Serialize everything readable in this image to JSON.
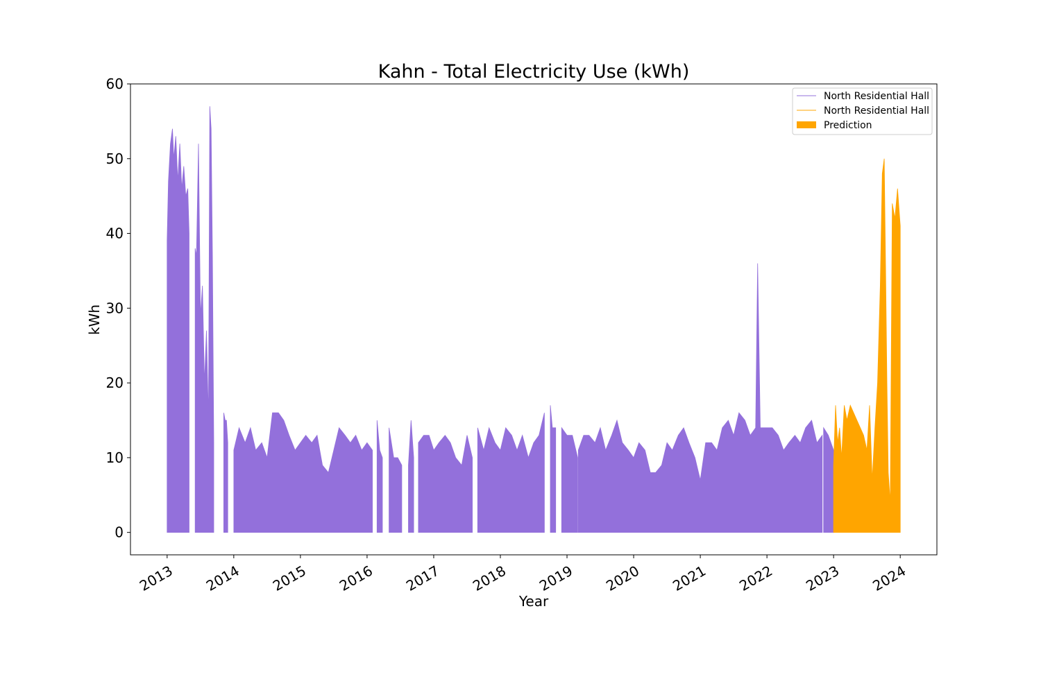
{
  "colors": {
    "historical": "#9370db",
    "prediction": "#ffa500",
    "axis": "#000000",
    "background": "#ffffff",
    "legend_border": "#cccccc"
  },
  "chart_data": {
    "type": "area",
    "title": "Kahn - Total Electricity Use (kWh)",
    "xlabel": "Year",
    "ylabel": "kWh",
    "x_ticks": [
      "2013",
      "2014",
      "2015",
      "2016",
      "2017",
      "2018",
      "2019",
      "2020",
      "2021",
      "2022",
      "2023",
      "2024"
    ],
    "x_range": [
      2012.45,
      2024.55
    ],
    "ylim": [
      -3,
      60
    ],
    "y_ticks": [
      0,
      10,
      20,
      30,
      40,
      50,
      60
    ],
    "grid": false,
    "legend_position": "top-right",
    "legend": [
      {
        "label": "North Residential Hall",
        "style": "line",
        "color": "#9370db"
      },
      {
        "label": "North Residential Hall",
        "style": "line",
        "color": "#ffa500"
      },
      {
        "label": "Prediction",
        "style": "patch",
        "color": "#ffa500"
      }
    ],
    "series": [
      {
        "name": "North Residential Hall",
        "color": "#9370db",
        "segments": [
          {
            "x": [
              2013.0,
              2013.02,
              2013.05,
              2013.08,
              2013.1,
              2013.13,
              2013.16,
              2013.19,
              2013.22,
              2013.25,
              2013.28,
              2013.31,
              2013.33
            ],
            "y": [
              39,
              47,
              52,
              54,
              50,
              53,
              47,
              52,
              46,
              49,
              45,
              46,
              40
            ]
          },
          {
            "x": [
              2013.42,
              2013.44,
              2013.47,
              2013.5,
              2013.53,
              2013.56,
              2013.59,
              2013.62,
              2013.64,
              2013.66,
              2013.68,
              2013.7
            ],
            "y": [
              38,
              37,
              52,
              29,
              33,
              20,
              27,
              15,
              57,
              54,
              37,
              12
            ]
          },
          {
            "x": [
              2013.85,
              2013.87,
              2013.89,
              2013.91
            ],
            "y": [
              16,
              15,
              15,
              12
            ]
          },
          {
            "x": [
              2014.0,
              2014.08,
              2014.17,
              2014.25,
              2014.33,
              2014.42,
              2014.5,
              2014.58,
              2014.67,
              2014.75,
              2014.83,
              2014.92,
              2015.0,
              2015.08,
              2015.17,
              2015.25,
              2015.33,
              2015.42,
              2015.5,
              2015.58,
              2015.67,
              2015.75,
              2015.83,
              2015.92,
              2016.0,
              2016.08
            ],
            "y": [
              11,
              14,
              12,
              14,
              11,
              12,
              10,
              16,
              16,
              15,
              13,
              11,
              12,
              13,
              12,
              13,
              9,
              8,
              11,
              14,
              13,
              12,
              13,
              11,
              12,
              11
            ]
          },
          {
            "x": [
              2016.15,
              2016.19,
              2016.23
            ],
            "y": [
              15,
              11,
              10
            ]
          },
          {
            "x": [
              2016.33,
              2016.4,
              2016.46,
              2016.52
            ],
            "y": [
              14,
              10,
              10,
              9
            ]
          },
          {
            "x": [
              2016.62,
              2016.66,
              2016.7
            ],
            "y": [
              9,
              15,
              10
            ]
          },
          {
            "x": [
              2016.77,
              2016.85,
              2016.93,
              2017.0,
              2017.08,
              2017.17,
              2017.25,
              2017.33,
              2017.42,
              2017.5,
              2017.58
            ],
            "y": [
              12,
              13,
              13,
              11,
              12,
              13,
              12,
              10,
              9,
              13,
              10
            ]
          },
          {
            "x": [
              2017.66,
              2017.75,
              2017.83,
              2017.92,
              2018.0,
              2018.08,
              2018.17,
              2018.25,
              2018.33,
              2018.42,
              2018.5,
              2018.58,
              2018.66
            ],
            "y": [
              14,
              11,
              14,
              12,
              11,
              14,
              13,
              11,
              13,
              10,
              12,
              13,
              16
            ]
          },
          {
            "x": [
              2018.75,
              2018.78,
              2018.83
            ],
            "y": [
              17,
              14,
              14
            ]
          },
          {
            "x": [
              2018.92,
              2019.0,
              2019.08,
              2019.16
            ],
            "y": [
              14,
              13,
              13,
              10
            ]
          },
          {
            "x": [
              2019.17,
              2019.25,
              2019.33,
              2019.42,
              2019.5,
              2019.58,
              2019.67,
              2019.75,
              2019.83,
              2019.92,
              2020.0,
              2020.08,
              2020.17,
              2020.25,
              2020.33,
              2020.42,
              2020.5,
              2020.58,
              2020.67,
              2020.75,
              2020.83,
              2020.92,
              2021.0,
              2021.08,
              2021.17,
              2021.25,
              2021.33,
              2021.42,
              2021.5,
              2021.58,
              2021.67,
              2021.75,
              2021.83,
              2021.86,
              2021.9,
              2022.0,
              2022.08,
              2022.17,
              2022.25,
              2022.33,
              2022.42,
              2022.5,
              2022.58,
              2022.67,
              2022.75,
              2022.83
            ],
            "y": [
              11,
              13,
              13,
              12,
              14,
              11,
              13,
              15,
              12,
              11,
              10,
              12,
              11,
              8,
              8,
              9,
              12,
              11,
              13,
              14,
              12,
              10,
              7,
              12,
              12,
              11,
              14,
              15,
              13,
              16,
              15,
              13,
              14,
              36,
              14,
              14,
              14,
              13,
              11,
              12,
              13,
              12,
              14,
              15,
              12,
              13
            ]
          },
          {
            "x": [
              2022.85,
              2022.92,
              2023.0
            ],
            "y": [
              14,
              13,
              11
            ]
          }
        ]
      },
      {
        "name": "North Residential Hall",
        "color": "#ffa500",
        "segments": [
          {
            "x": [
              2023.0,
              2023.03,
              2023.06,
              2023.09,
              2023.12,
              2023.16,
              2023.2,
              2023.25,
              2023.3,
              2023.35,
              2023.4,
              2023.45,
              2023.5,
              2023.54,
              2023.58,
              2023.62,
              2023.66,
              2023.7,
              2023.73,
              2023.76,
              2023.78,
              2023.8,
              2023.82,
              2023.85,
              2023.88,
              2023.92,
              2023.96,
              2024.0
            ],
            "y": [
              9,
              17,
              12,
              14,
              10,
              17,
              15,
              17,
              16,
              15,
              14,
              13,
              11,
              17,
              7,
              14,
              20,
              33,
              48,
              50,
              35,
              20,
              8,
              4,
              44,
              42,
              46,
              41
            ]
          }
        ]
      }
    ]
  }
}
